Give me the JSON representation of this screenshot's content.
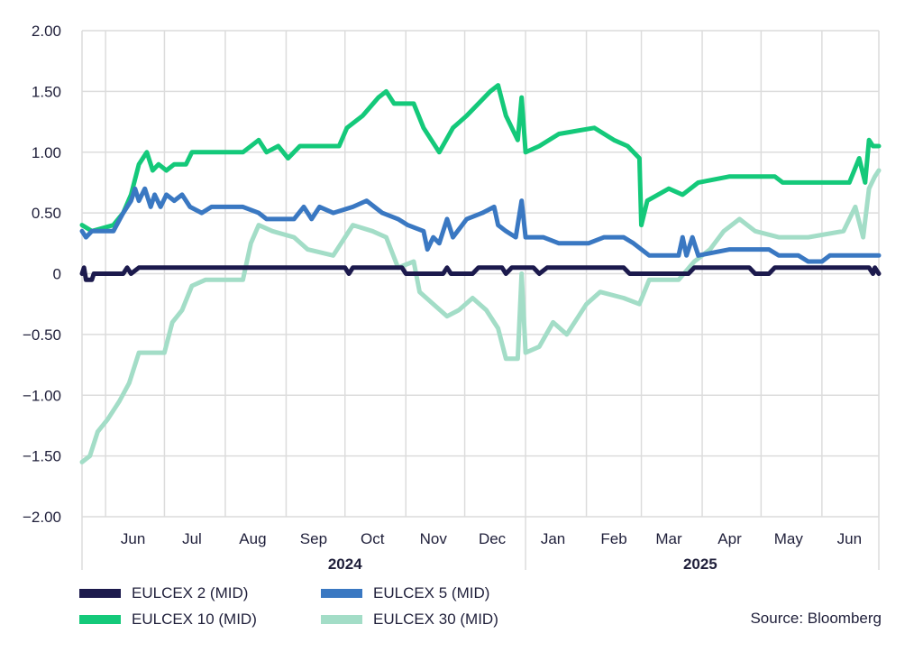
{
  "chart_data": {
    "type": "line",
    "title": "",
    "xlabel": "",
    "ylabel": "",
    "ylim": [
      -2.0,
      2.0
    ],
    "yticks": [
      "2.00",
      "1.50",
      "1.00",
      "0.50",
      "0",
      "−0.50",
      "−1.00",
      "−1.50",
      "−2.00"
    ],
    "ytick_values": [
      2.0,
      1.5,
      1.0,
      0.5,
      0,
      -0.5,
      -1.0,
      -1.5,
      -2.0
    ],
    "x_start": "2024-05-20",
    "x_end": "2025-06-30",
    "month_labels": [
      {
        "label": "Jun",
        "date": "2024-06-15"
      },
      {
        "label": "Jul",
        "date": "2024-07-15"
      },
      {
        "label": "Aug",
        "date": "2024-08-15"
      },
      {
        "label": "Sep",
        "date": "2024-09-15"
      },
      {
        "label": "Oct",
        "date": "2024-10-15"
      },
      {
        "label": "Nov",
        "date": "2024-11-15"
      },
      {
        "label": "Dec",
        "date": "2024-12-15"
      },
      {
        "label": "Jan",
        "date": "2025-01-15"
      },
      {
        "label": "Feb",
        "date": "2025-02-15"
      },
      {
        "label": "Mar",
        "date": "2025-03-15"
      },
      {
        "label": "Apr",
        "date": "2025-04-15"
      },
      {
        "label": "May",
        "date": "2025-05-15"
      },
      {
        "label": "Jun",
        "date": "2025-06-15"
      }
    ],
    "gridlines_x": [
      "2024-06-01",
      "2024-07-01",
      "2024-08-01",
      "2024-09-01",
      "2024-10-01",
      "2024-11-01",
      "2024-12-01",
      "2025-01-01",
      "2025-02-01",
      "2025-03-01",
      "2025-04-01",
      "2025-05-01",
      "2025-06-01"
    ],
    "years": [
      {
        "label": "2024",
        "date": "2024-10-01"
      },
      {
        "label": "2025",
        "date": "2025-03-31"
      }
    ],
    "year_divider": "2025-01-01",
    "grid": true,
    "legend_position": "bottom-left",
    "series": [
      {
        "name": "EULCEX 2 (MID)",
        "color": "#1c1a4d",
        "points": [
          [
            "2024-05-20",
            0.0
          ],
          [
            "2024-05-21",
            0.05
          ],
          [
            "2024-05-22",
            -0.05
          ],
          [
            "2024-05-25",
            -0.05
          ],
          [
            "2024-05-26",
            0.0
          ],
          [
            "2024-06-10",
            0.0
          ],
          [
            "2024-06-12",
            0.05
          ],
          [
            "2024-06-14",
            0.0
          ],
          [
            "2024-06-18",
            0.05
          ],
          [
            "2024-10-01",
            0.05
          ],
          [
            "2024-10-03",
            0.0
          ],
          [
            "2024-10-05",
            0.05
          ],
          [
            "2024-10-30",
            0.05
          ],
          [
            "2024-11-01",
            0.0
          ],
          [
            "2024-11-20",
            0.0
          ],
          [
            "2024-11-22",
            0.05
          ],
          [
            "2024-11-24",
            0.0
          ],
          [
            "2024-12-05",
            0.0
          ],
          [
            "2024-12-08",
            0.05
          ],
          [
            "2024-12-20",
            0.05
          ],
          [
            "2024-12-22",
            0.0
          ],
          [
            "2024-12-25",
            0.05
          ],
          [
            "2025-01-05",
            0.05
          ],
          [
            "2025-01-08",
            0.0
          ],
          [
            "2025-01-12",
            0.05
          ],
          [
            "2025-02-20",
            0.05
          ],
          [
            "2025-02-23",
            0.0
          ],
          [
            "2025-03-25",
            0.0
          ],
          [
            "2025-03-28",
            0.05
          ],
          [
            "2025-04-25",
            0.05
          ],
          [
            "2025-04-28",
            0.0
          ],
          [
            "2025-05-05",
            0.0
          ],
          [
            "2025-05-08",
            0.05
          ],
          [
            "2025-06-25",
            0.05
          ],
          [
            "2025-06-27",
            0.0
          ],
          [
            "2025-06-28",
            0.05
          ],
          [
            "2025-06-30",
            0.0
          ]
        ]
      },
      {
        "name": "EULCEX 5 (MID)",
        "color": "#3a78c2",
        "points": [
          [
            "2024-05-20",
            0.35
          ],
          [
            "2024-05-22",
            0.3
          ],
          [
            "2024-05-25",
            0.35
          ],
          [
            "2024-06-05",
            0.35
          ],
          [
            "2024-06-10",
            0.5
          ],
          [
            "2024-06-14",
            0.6
          ],
          [
            "2024-06-16",
            0.7
          ],
          [
            "2024-06-18",
            0.6
          ],
          [
            "2024-06-21",
            0.7
          ],
          [
            "2024-06-24",
            0.55
          ],
          [
            "2024-06-26",
            0.65
          ],
          [
            "2024-06-29",
            0.55
          ],
          [
            "2024-07-02",
            0.65
          ],
          [
            "2024-07-06",
            0.6
          ],
          [
            "2024-07-10",
            0.65
          ],
          [
            "2024-07-14",
            0.55
          ],
          [
            "2024-07-20",
            0.5
          ],
          [
            "2024-07-25",
            0.55
          ],
          [
            "2024-08-10",
            0.55
          ],
          [
            "2024-08-18",
            0.5
          ],
          [
            "2024-08-22",
            0.45
          ],
          [
            "2024-09-05",
            0.45
          ],
          [
            "2024-09-10",
            0.55
          ],
          [
            "2024-09-14",
            0.45
          ],
          [
            "2024-09-18",
            0.55
          ],
          [
            "2024-09-25",
            0.5
          ],
          [
            "2024-10-05",
            0.55
          ],
          [
            "2024-10-12",
            0.6
          ],
          [
            "2024-10-20",
            0.5
          ],
          [
            "2024-10-28",
            0.45
          ],
          [
            "2024-11-02",
            0.4
          ],
          [
            "2024-11-10",
            0.35
          ],
          [
            "2024-11-12",
            0.2
          ],
          [
            "2024-11-15",
            0.3
          ],
          [
            "2024-11-18",
            0.25
          ],
          [
            "2024-11-22",
            0.45
          ],
          [
            "2024-11-25",
            0.3
          ],
          [
            "2024-12-02",
            0.45
          ],
          [
            "2024-12-10",
            0.5
          ],
          [
            "2024-12-16",
            0.55
          ],
          [
            "2024-12-18",
            0.4
          ],
          [
            "2024-12-22",
            0.35
          ],
          [
            "2024-12-27",
            0.3
          ],
          [
            "2024-12-30",
            0.6
          ],
          [
            "2025-01-01",
            0.3
          ],
          [
            "2025-01-10",
            0.3
          ],
          [
            "2025-01-18",
            0.25
          ],
          [
            "2025-02-02",
            0.25
          ],
          [
            "2025-02-10",
            0.3
          ],
          [
            "2025-02-20",
            0.3
          ],
          [
            "2025-02-25",
            0.25
          ],
          [
            "2025-03-05",
            0.15
          ],
          [
            "2025-03-20",
            0.15
          ],
          [
            "2025-03-22",
            0.3
          ],
          [
            "2025-03-24",
            0.15
          ],
          [
            "2025-03-27",
            0.3
          ],
          [
            "2025-03-30",
            0.15
          ],
          [
            "2025-04-15",
            0.2
          ],
          [
            "2025-05-05",
            0.2
          ],
          [
            "2025-05-10",
            0.15
          ],
          [
            "2025-05-20",
            0.15
          ],
          [
            "2025-05-25",
            0.1
          ],
          [
            "2025-06-01",
            0.1
          ],
          [
            "2025-06-05",
            0.15
          ],
          [
            "2025-06-30",
            0.15
          ]
        ]
      },
      {
        "name": "EULCEX 10 (MID)",
        "color": "#14c97a",
        "points": [
          [
            "2024-05-20",
            0.4
          ],
          [
            "2024-05-25",
            0.35
          ],
          [
            "2024-06-05",
            0.4
          ],
          [
            "2024-06-10",
            0.5
          ],
          [
            "2024-06-14",
            0.65
          ],
          [
            "2024-06-18",
            0.9
          ],
          [
            "2024-06-22",
            1.0
          ],
          [
            "2024-06-25",
            0.85
          ],
          [
            "2024-06-28",
            0.9
          ],
          [
            "2024-07-02",
            0.85
          ],
          [
            "2024-07-06",
            0.9
          ],
          [
            "2024-07-12",
            0.9
          ],
          [
            "2024-07-15",
            1.0
          ],
          [
            "2024-08-10",
            1.0
          ],
          [
            "2024-08-18",
            1.1
          ],
          [
            "2024-08-22",
            1.0
          ],
          [
            "2024-08-28",
            1.05
          ],
          [
            "2024-09-02",
            0.95
          ],
          [
            "2024-09-08",
            1.05
          ],
          [
            "2024-09-28",
            1.05
          ],
          [
            "2024-10-02",
            1.2
          ],
          [
            "2024-10-10",
            1.3
          ],
          [
            "2024-10-18",
            1.45
          ],
          [
            "2024-10-22",
            1.5
          ],
          [
            "2024-10-26",
            1.4
          ],
          [
            "2024-11-05",
            1.4
          ],
          [
            "2024-11-10",
            1.2
          ],
          [
            "2024-11-18",
            1.0
          ],
          [
            "2024-11-25",
            1.2
          ],
          [
            "2024-12-02",
            1.3
          ],
          [
            "2024-12-08",
            1.4
          ],
          [
            "2024-12-14",
            1.5
          ],
          [
            "2024-12-18",
            1.55
          ],
          [
            "2024-12-22",
            1.3
          ],
          [
            "2024-12-28",
            1.1
          ],
          [
            "2024-12-30",
            1.45
          ],
          [
            "2025-01-01",
            1.0
          ],
          [
            "2025-01-08",
            1.05
          ],
          [
            "2025-01-18",
            1.15
          ],
          [
            "2025-02-05",
            1.2
          ],
          [
            "2025-02-15",
            1.1
          ],
          [
            "2025-02-22",
            1.05
          ],
          [
            "2025-02-28",
            0.95
          ],
          [
            "2025-03-01",
            0.4
          ],
          [
            "2025-03-04",
            0.6
          ],
          [
            "2025-03-15",
            0.7
          ],
          [
            "2025-03-22",
            0.65
          ],
          [
            "2025-03-30",
            0.75
          ],
          [
            "2025-04-15",
            0.8
          ],
          [
            "2025-05-08",
            0.8
          ],
          [
            "2025-05-12",
            0.75
          ],
          [
            "2025-05-30",
            0.75
          ],
          [
            "2025-06-15",
            0.75
          ],
          [
            "2025-06-20",
            0.95
          ],
          [
            "2025-06-23",
            0.75
          ],
          [
            "2025-06-25",
            1.1
          ],
          [
            "2025-06-27",
            1.05
          ],
          [
            "2025-06-30",
            1.05
          ]
        ]
      },
      {
        "name": "EULCEX 30 (MID)",
        "color": "#a3ddc7",
        "points": [
          [
            "2024-05-20",
            -1.55
          ],
          [
            "2024-05-24",
            -1.5
          ],
          [
            "2024-05-28",
            -1.3
          ],
          [
            "2024-06-02",
            -1.2
          ],
          [
            "2024-06-08",
            -1.05
          ],
          [
            "2024-06-13",
            -0.9
          ],
          [
            "2024-06-18",
            -0.65
          ],
          [
            "2024-07-01",
            -0.65
          ],
          [
            "2024-07-05",
            -0.4
          ],
          [
            "2024-07-10",
            -0.3
          ],
          [
            "2024-07-15",
            -0.1
          ],
          [
            "2024-07-22",
            -0.05
          ],
          [
            "2024-08-10",
            -0.05
          ],
          [
            "2024-08-14",
            0.25
          ],
          [
            "2024-08-18",
            0.4
          ],
          [
            "2024-08-25",
            0.35
          ],
          [
            "2024-09-05",
            0.3
          ],
          [
            "2024-09-12",
            0.2
          ],
          [
            "2024-09-25",
            0.15
          ],
          [
            "2024-10-01",
            0.3
          ],
          [
            "2024-10-05",
            0.4
          ],
          [
            "2024-10-15",
            0.35
          ],
          [
            "2024-10-22",
            0.3
          ],
          [
            "2024-10-28",
            0.05
          ],
          [
            "2024-11-05",
            0.1
          ],
          [
            "2024-11-08",
            -0.15
          ],
          [
            "2024-11-15",
            -0.25
          ],
          [
            "2024-11-22",
            -0.35
          ],
          [
            "2024-11-28",
            -0.3
          ],
          [
            "2024-12-05",
            -0.2
          ],
          [
            "2024-12-12",
            -0.3
          ],
          [
            "2024-12-18",
            -0.45
          ],
          [
            "2024-12-22",
            -0.7
          ],
          [
            "2024-12-28",
            -0.7
          ],
          [
            "2024-12-30",
            0.0
          ],
          [
            "2025-01-01",
            -0.65
          ],
          [
            "2025-01-08",
            -0.6
          ],
          [
            "2025-01-15",
            -0.4
          ],
          [
            "2025-01-22",
            -0.5
          ],
          [
            "2025-02-01",
            -0.25
          ],
          [
            "2025-02-08",
            -0.15
          ],
          [
            "2025-02-20",
            -0.2
          ],
          [
            "2025-02-28",
            -0.25
          ],
          [
            "2025-03-05",
            -0.05
          ],
          [
            "2025-03-20",
            -0.05
          ],
          [
            "2025-03-28",
            0.1
          ],
          [
            "2025-04-05",
            0.2
          ],
          [
            "2025-04-12",
            0.35
          ],
          [
            "2025-04-20",
            0.45
          ],
          [
            "2025-04-28",
            0.35
          ],
          [
            "2025-05-10",
            0.3
          ],
          [
            "2025-05-25",
            0.3
          ],
          [
            "2025-06-12",
            0.35
          ],
          [
            "2025-06-18",
            0.55
          ],
          [
            "2025-06-22",
            0.3
          ],
          [
            "2025-06-25",
            0.7
          ],
          [
            "2025-06-28",
            0.8
          ],
          [
            "2025-06-30",
            0.85
          ]
        ]
      }
    ]
  },
  "legend": [
    {
      "label": "EULCEX 2 (MID)",
      "color": "#1c1a4d"
    },
    {
      "label": "EULCEX 5 (MID)",
      "color": "#3a78c2"
    },
    {
      "label": "EULCEX 10 (MID)",
      "color": "#14c97a"
    },
    {
      "label": "EULCEX 30 (MID)",
      "color": "#a3ddc7"
    }
  ],
  "source": "Source: Bloomberg"
}
